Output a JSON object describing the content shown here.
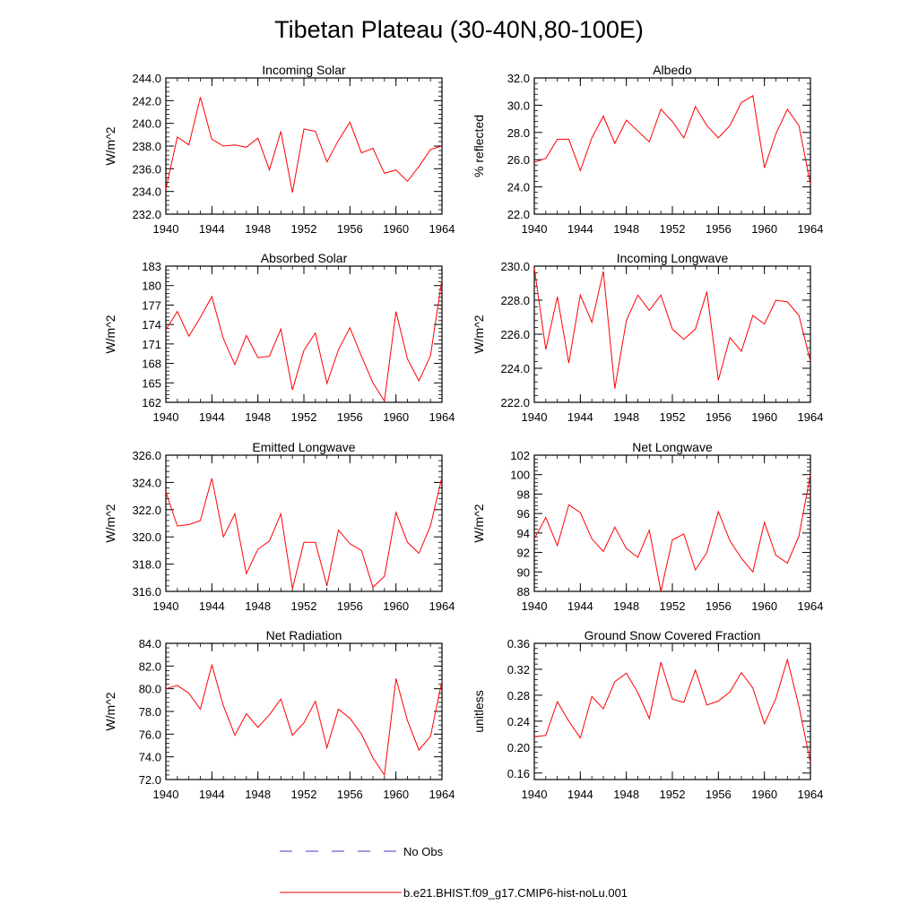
{
  "title": "Tibetan Plateau (30-40N,80-100E)",
  "legend": {
    "obs_label": "No Obs",
    "model_label": "b.e21.BHIST.f09_g17.CMIP6-hist-noLu.001",
    "obs_color": "#3b3bbf",
    "model_color": "#ff0000"
  },
  "chart_data": [
    {
      "type": "line",
      "title": "Incoming Solar",
      "ylabel": "W/m^2",
      "xlim": [
        1940,
        1964
      ],
      "ylim": [
        232,
        244
      ],
      "xticks": [
        "1940",
        "1944",
        "1948",
        "1952",
        "1956",
        "1960",
        "1964"
      ],
      "yticks": [
        "232.0",
        "234.0",
        "236.0",
        "238.0",
        "240.0",
        "242.0",
        "244.0"
      ],
      "x": [
        1940,
        1941,
        1942,
        1943,
        1944,
        1945,
        1946,
        1947,
        1948,
        1949,
        1950,
        1951,
        1952,
        1953,
        1954,
        1955,
        1956,
        1957,
        1958,
        1959,
        1960,
        1961,
        1962,
        1963,
        1964
      ],
      "values": [
        234.2,
        238.8,
        238.1,
        242.3,
        238.6,
        238.0,
        238.1,
        237.9,
        238.7,
        235.9,
        239.3,
        233.9,
        239.5,
        239.3,
        236.6,
        238.5,
        240.1,
        237.4,
        237.8,
        235.6,
        235.9,
        234.9,
        236.2,
        237.7,
        238.0
      ]
    },
    {
      "type": "line",
      "title": "Albedo",
      "ylabel": "% reflected",
      "xlim": [
        1940,
        1964
      ],
      "ylim": [
        22,
        32
      ],
      "xticks": [
        "1940",
        "1944",
        "1948",
        "1952",
        "1956",
        "1960",
        "1964"
      ],
      "yticks": [
        "22.0",
        "24.0",
        "26.0",
        "28.0",
        "30.0",
        "32.0"
      ],
      "x": [
        1940,
        1941,
        1942,
        1943,
        1944,
        1945,
        1946,
        1947,
        1948,
        1949,
        1950,
        1951,
        1952,
        1953,
        1954,
        1955,
        1956,
        1957,
        1958,
        1959,
        1960,
        1961,
        1962,
        1963,
        1964
      ],
      "values": [
        25.8,
        26.1,
        27.5,
        27.5,
        25.2,
        27.6,
        29.2,
        27.2,
        28.9,
        28.1,
        27.3,
        29.7,
        28.8,
        27.6,
        29.9,
        28.5,
        27.6,
        28.5,
        30.2,
        30.7,
        25.4,
        27.9,
        29.7,
        28.5,
        24.2
      ]
    },
    {
      "type": "line",
      "title": "Absorbed Solar",
      "ylabel": "W/m^2",
      "xlim": [
        1940,
        1964
      ],
      "ylim": [
        162,
        183
      ],
      "xticks": [
        "1940",
        "1944",
        "1948",
        "1952",
        "1956",
        "1960",
        "1964"
      ],
      "yticks": [
        "162",
        "165",
        "168",
        "171",
        "174",
        "177",
        "180",
        "183"
      ],
      "x": [
        1940,
        1941,
        1942,
        1943,
        1944,
        1945,
        1946,
        1947,
        1948,
        1949,
        1950,
        1951,
        1952,
        1953,
        1954,
        1955,
        1956,
        1957,
        1958,
        1959,
        1960,
        1961,
        1962,
        1963,
        1964
      ],
      "values": [
        173.2,
        176.0,
        172.2,
        175.1,
        178.3,
        171.8,
        167.8,
        172.3,
        168.9,
        169.1,
        173.3,
        163.9,
        170.0,
        172.7,
        164.9,
        170.1,
        173.5,
        169.1,
        165.0,
        162.2,
        176.0,
        168.7,
        165.3,
        169.2,
        181.0
      ]
    },
    {
      "type": "line",
      "title": "Incoming Longwave",
      "ylabel": "W/m^2",
      "xlim": [
        1940,
        1964
      ],
      "ylim": [
        222,
        230
      ],
      "xticks": [
        "1940",
        "1944",
        "1948",
        "1952",
        "1956",
        "1960",
        "1964"
      ],
      "yticks": [
        "222.0",
        "224.0",
        "226.0",
        "228.0",
        "230.0"
      ],
      "x": [
        1940,
        1941,
        1942,
        1943,
        1944,
        1945,
        1946,
        1947,
        1948,
        1949,
        1950,
        1951,
        1952,
        1953,
        1954,
        1955,
        1956,
        1957,
        1958,
        1959,
        1960,
        1961,
        1962,
        1963,
        1964
      ],
      "values": [
        229.9,
        225.1,
        228.2,
        224.3,
        228.3,
        226.7,
        229.7,
        222.8,
        226.8,
        228.3,
        227.4,
        228.3,
        226.3,
        225.7,
        226.3,
        228.5,
        223.3,
        225.8,
        225.0,
        227.1,
        226.6,
        228.0,
        227.9,
        227.1,
        224.4
      ]
    },
    {
      "type": "line",
      "title": "Emitted Longwave",
      "ylabel": "W/m^2",
      "xlim": [
        1940,
        1964
      ],
      "ylim": [
        316,
        326
      ],
      "xticks": [
        "1940",
        "1944",
        "1948",
        "1952",
        "1956",
        "1960",
        "1964"
      ],
      "yticks": [
        "316.0",
        "318.0",
        "320.0",
        "322.0",
        "324.0",
        "326.0"
      ],
      "x": [
        1940,
        1941,
        1942,
        1943,
        1944,
        1945,
        1946,
        1947,
        1948,
        1949,
        1950,
        1951,
        1952,
        1953,
        1954,
        1955,
        1956,
        1957,
        1958,
        1959,
        1960,
        1961,
        1962,
        1963,
        1964
      ],
      "values": [
        323.3,
        320.8,
        320.9,
        321.2,
        324.3,
        320.0,
        321.7,
        317.3,
        319.1,
        319.7,
        321.7,
        316.2,
        319.6,
        319.6,
        316.4,
        320.5,
        319.5,
        319.0,
        316.3,
        317.1,
        321.8,
        319.6,
        318.8,
        320.8,
        324.4
      ]
    },
    {
      "type": "line",
      "title": "Net Longwave",
      "ylabel": "W/m^2",
      "xlim": [
        1940,
        1964
      ],
      "ylim": [
        88,
        102
      ],
      "xticks": [
        "1940",
        "1944",
        "1948",
        "1952",
        "1956",
        "1960",
        "1964"
      ],
      "yticks": [
        "88",
        "90",
        "92",
        "94",
        "96",
        "98",
        "100",
        "102"
      ],
      "x": [
        1940,
        1941,
        1942,
        1943,
        1944,
        1945,
        1946,
        1947,
        1948,
        1949,
        1950,
        1951,
        1952,
        1953,
        1954,
        1955,
        1956,
        1957,
        1958,
        1959,
        1960,
        1961,
        1962,
        1963,
        1964
      ],
      "values": [
        93.4,
        95.6,
        92.7,
        96.9,
        96.1,
        93.4,
        92.1,
        94.6,
        92.4,
        91.5,
        94.3,
        88.0,
        93.3,
        93.9,
        90.2,
        92.0,
        96.2,
        93.2,
        91.4,
        90.0,
        95.1,
        91.7,
        90.9,
        93.7,
        100.0
      ]
    },
    {
      "type": "line",
      "title": "Net Radiation",
      "ylabel": "W/m^2",
      "xlim": [
        1940,
        1964
      ],
      "ylim": [
        72,
        84
      ],
      "xticks": [
        "1940",
        "1944",
        "1948",
        "1952",
        "1956",
        "1960",
        "1964"
      ],
      "yticks": [
        "72.0",
        "74.0",
        "76.0",
        "78.0",
        "80.0",
        "82.0",
        "84.0"
      ],
      "x": [
        1940,
        1941,
        1942,
        1943,
        1944,
        1945,
        1946,
        1947,
        1948,
        1949,
        1950,
        1951,
        1952,
        1953,
        1954,
        1955,
        1956,
        1957,
        1958,
        1959,
        1960,
        1961,
        1962,
        1963,
        1964
      ],
      "values": [
        80.0,
        80.3,
        79.6,
        78.2,
        82.1,
        78.5,
        75.9,
        77.8,
        76.6,
        77.7,
        79.1,
        75.9,
        77.0,
        78.9,
        74.8,
        78.2,
        77.4,
        76.0,
        73.9,
        72.4,
        80.9,
        77.2,
        74.6,
        75.8,
        80.7
      ]
    },
    {
      "type": "line",
      "title": "Ground Snow Covered Fraction",
      "ylabel": "unitless",
      "xlim": [
        1940,
        1964
      ],
      "ylim": [
        0.15,
        0.36
      ],
      "xticks": [
        "1940",
        "1944",
        "1948",
        "1952",
        "1956",
        "1960",
        "1964"
      ],
      "yticks": [
        "0.16",
        "0.20",
        "0.24",
        "0.28",
        "0.32",
        "0.36"
      ],
      "x": [
        1940,
        1941,
        1942,
        1943,
        1944,
        1945,
        1946,
        1947,
        1948,
        1949,
        1950,
        1951,
        1952,
        1953,
        1954,
        1955,
        1956,
        1957,
        1958,
        1959,
        1960,
        1961,
        1962,
        1963,
        1964
      ],
      "values": [
        0.216,
        0.218,
        0.27,
        0.24,
        0.214,
        0.278,
        0.259,
        0.301,
        0.314,
        0.284,
        0.244,
        0.331,
        0.274,
        0.269,
        0.319,
        0.265,
        0.271,
        0.285,
        0.315,
        0.291,
        0.236,
        0.275,
        0.335,
        0.263,
        0.176
      ]
    }
  ]
}
